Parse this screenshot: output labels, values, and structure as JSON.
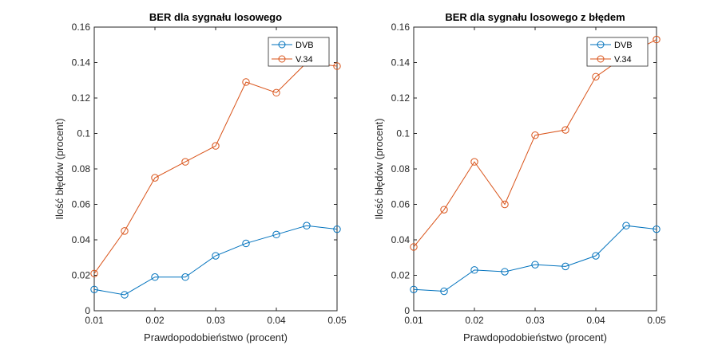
{
  "colors": {
    "dvb": "#0072BD",
    "v34": "#D95319"
  },
  "chart_data": [
    {
      "type": "line",
      "title": "BER dla sygnału losowego",
      "xlabel": "Prawdopodobieństwo (procent)",
      "ylabel": "Ilość błędów (procent)",
      "x": [
        0.01,
        0.015,
        0.02,
        0.025,
        0.03,
        0.035,
        0.04,
        0.045,
        0.05
      ],
      "xlim": [
        0.01,
        0.05
      ],
      "ylim": [
        0,
        0.16
      ],
      "xticks": [
        "0.01",
        "0.02",
        "0.03",
        "0.04",
        "0.05"
      ],
      "xtick_values": [
        0.01,
        0.02,
        0.03,
        0.04,
        0.05
      ],
      "yticks": [
        "0",
        "0.02",
        "0.04",
        "0.06",
        "0.08",
        "0.1",
        "0.12",
        "0.14",
        "0.16"
      ],
      "ytick_values": [
        0,
        0.02,
        0.04,
        0.06,
        0.08,
        0.1,
        0.12,
        0.14,
        0.16
      ],
      "grid": false,
      "legend_position": "top-right",
      "marker": "circle",
      "series": [
        {
          "name": "DVB",
          "color": "#0072BD",
          "values": [
            0.012,
            0.009,
            0.019,
            0.019,
            0.031,
            0.038,
            0.043,
            0.048,
            0.046
          ]
        },
        {
          "name": "V.34",
          "color": "#D95319",
          "values": [
            0.021,
            0.045,
            0.075,
            0.084,
            0.093,
            0.129,
            0.123,
            0.14,
            0.138
          ]
        }
      ]
    },
    {
      "type": "line",
      "title": "BER dla sygnału losowego z błędem",
      "xlabel": "Prawdopodobieństwo (procent)",
      "ylabel": "Ilość błędów (procent)",
      "x": [
        0.01,
        0.015,
        0.02,
        0.025,
        0.03,
        0.035,
        0.04,
        0.045,
        0.05
      ],
      "xlim": [
        0.01,
        0.05
      ],
      "ylim": [
        0,
        0.16
      ],
      "xticks": [
        "0.01",
        "0.02",
        "0.03",
        "0.04",
        "0.05"
      ],
      "xtick_values": [
        0.01,
        0.02,
        0.03,
        0.04,
        0.05
      ],
      "yticks": [
        "0",
        "0.02",
        "0.04",
        "0.06",
        "0.08",
        "0.1",
        "0.12",
        "0.14",
        "0.16"
      ],
      "ytick_values": [
        0,
        0.02,
        0.04,
        0.06,
        0.08,
        0.1,
        0.12,
        0.14,
        0.16
      ],
      "grid": false,
      "legend_position": "top-right",
      "marker": "circle",
      "series": [
        {
          "name": "DVB",
          "color": "#0072BD",
          "values": [
            0.012,
            0.011,
            0.023,
            0.022,
            0.026,
            0.025,
            0.031,
            0.048,
            0.046
          ]
        },
        {
          "name": "V.34",
          "color": "#D95319",
          "values": [
            0.036,
            0.057,
            0.084,
            0.06,
            0.099,
            0.102,
            0.132,
            0.144,
            0.153
          ]
        }
      ]
    }
  ]
}
